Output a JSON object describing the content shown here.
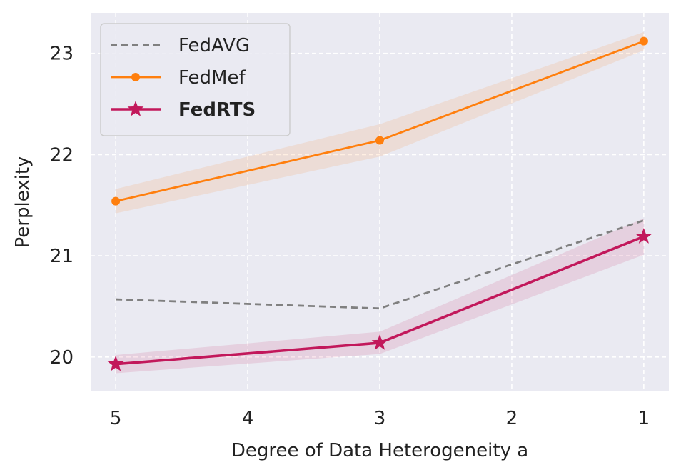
{
  "chart_data": {
    "type": "line",
    "title": "",
    "xlabel": "Degree of Data Heterogeneity a",
    "ylabel": "Perplexity",
    "x": [
      5,
      3,
      1
    ],
    "x_ticks": [
      5,
      4,
      3,
      2,
      1
    ],
    "x_tick_labels": [
      "5",
      "4",
      "3",
      "2",
      "1"
    ],
    "xlim": [
      5.19,
      0.81
    ],
    "y_ticks": [
      20,
      21,
      22,
      23
    ],
    "y_tick_labels": [
      "20",
      "21",
      "22",
      "23"
    ],
    "ylim": [
      19.66,
      23.4
    ],
    "grid": true,
    "legend_position": "top-left",
    "background_color": "#EAEAF2",
    "series": [
      {
        "name": "FedAVG",
        "values": [
          20.57,
          20.48,
          21.35
        ],
        "color": "#808080",
        "style": "dashed",
        "marker": "none",
        "band": null,
        "bold": false
      },
      {
        "name": "FedMef",
        "values": [
          21.54,
          22.14,
          23.12
        ],
        "color": "#FF7F0E",
        "style": "solid",
        "marker": "circle",
        "band": [
          0.12,
          0.16,
          0.09
        ],
        "bold": false
      },
      {
        "name": "FedRTS",
        "values": [
          19.93,
          20.14,
          21.19
        ],
        "color": "#C2185B",
        "style": "solid",
        "marker": "star",
        "band": [
          0.09,
          0.11,
          0.18
        ],
        "bold": true
      }
    ]
  }
}
